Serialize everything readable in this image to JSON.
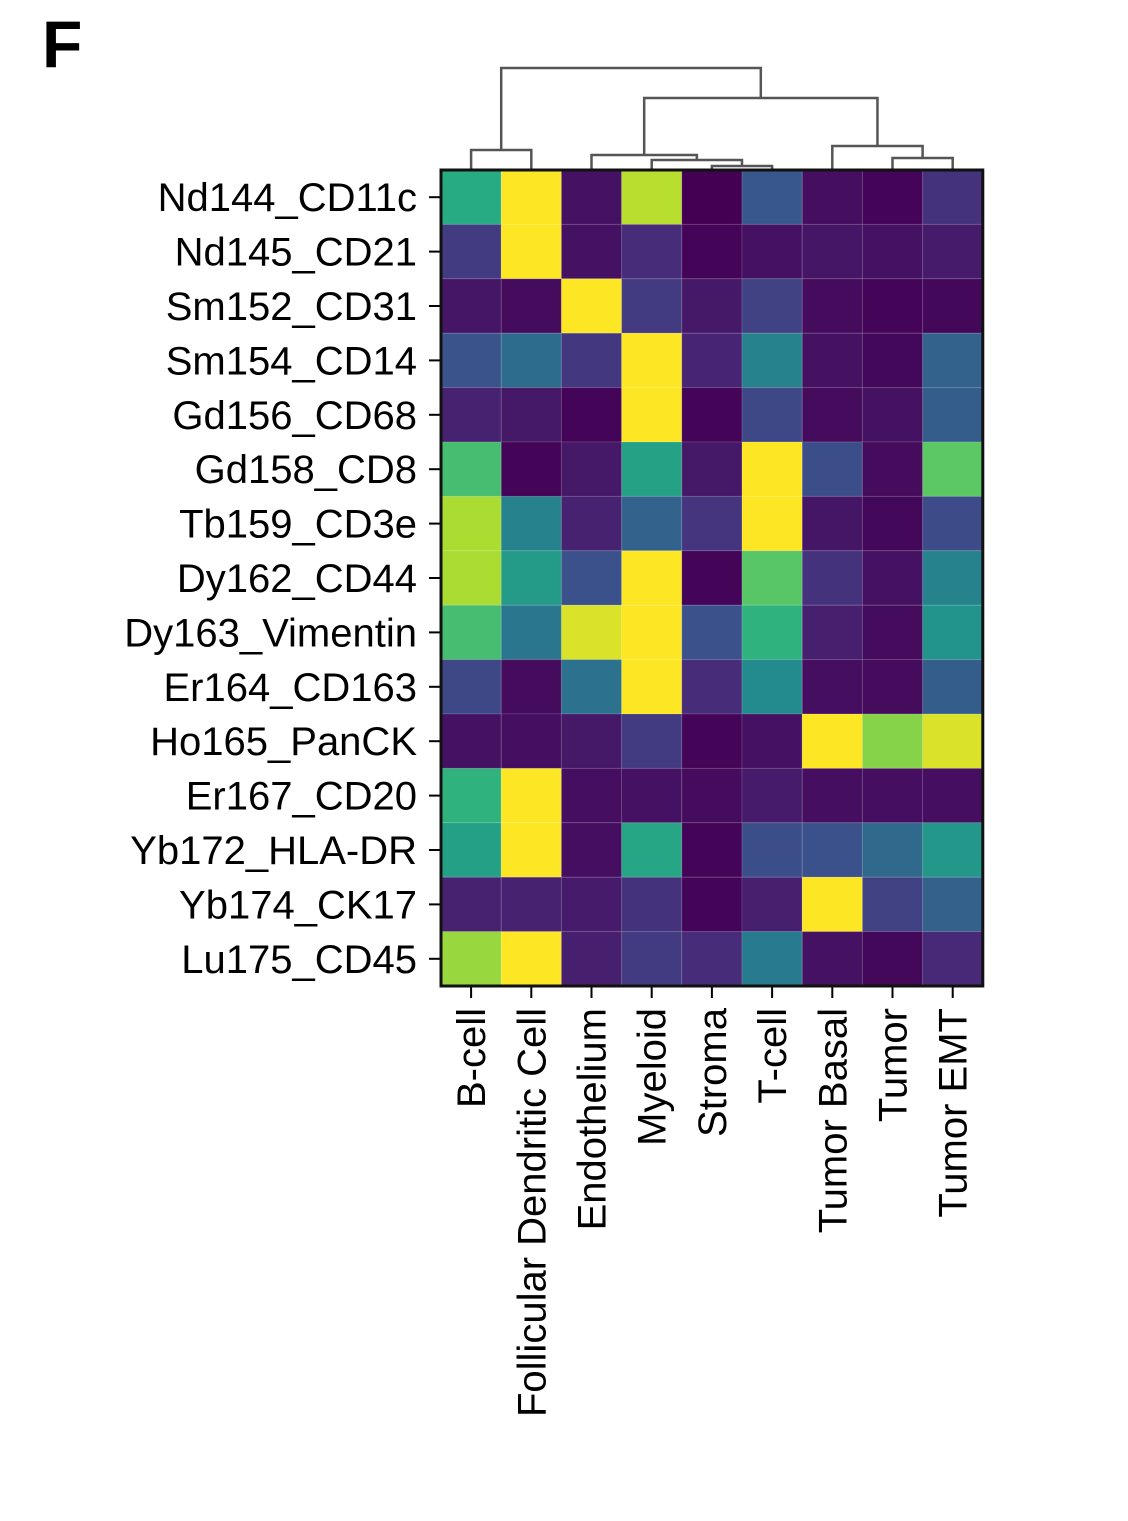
{
  "panel_label": "F",
  "chart_data": {
    "type": "heatmap",
    "title": "",
    "xlabel": "",
    "ylabel": "",
    "columns": [
      "B-cell",
      "Follicular Dendritic Cell",
      "Endothelium",
      "Myeloid",
      "Stroma",
      "T-cell",
      "Tumor Basal",
      "Tumor",
      "Tumor EMT"
    ],
    "rows": [
      "Nd144_CD11c",
      "Nd145_CD21",
      "Sm152_CD31",
      "Sm154_CD14",
      "Gd156_CD68",
      "Gd158_CD8",
      "Tb159_CD3e",
      "Dy162_CD44",
      "Dy163_Vimentin",
      "Er164_CD163",
      "Ho165_PanCK",
      "Er167_CD20",
      "Yb172_HLA-DR",
      "Yb174_CK17",
      "Lu175_CD45"
    ],
    "values": [
      [
        0.62,
        1.0,
        0.05,
        0.9,
        0.0,
        0.28,
        0.04,
        0.01,
        0.15
      ],
      [
        0.18,
        1.0,
        0.05,
        0.13,
        0.01,
        0.05,
        0.06,
        0.05,
        0.08
      ],
      [
        0.06,
        0.03,
        1.0,
        0.18,
        0.07,
        0.2,
        0.03,
        0.01,
        0.02
      ],
      [
        0.26,
        0.36,
        0.17,
        1.0,
        0.11,
        0.45,
        0.05,
        0.02,
        0.32
      ],
      [
        0.1,
        0.07,
        0.01,
        1.0,
        0.01,
        0.22,
        0.03,
        0.05,
        0.3
      ],
      [
        0.7,
        0.01,
        0.07,
        0.58,
        0.07,
        1.0,
        0.24,
        0.03,
        0.75
      ],
      [
        0.88,
        0.45,
        0.1,
        0.32,
        0.16,
        1.0,
        0.06,
        0.02,
        0.23
      ],
      [
        0.88,
        0.55,
        0.25,
        1.0,
        0.01,
        0.74,
        0.15,
        0.05,
        0.45
      ],
      [
        0.7,
        0.4,
        0.95,
        1.0,
        0.25,
        0.65,
        0.09,
        0.03,
        0.52
      ],
      [
        0.22,
        0.03,
        0.38,
        1.0,
        0.13,
        0.48,
        0.04,
        0.03,
        0.3
      ],
      [
        0.05,
        0.04,
        0.07,
        0.18,
        0.01,
        0.05,
        1.0,
        0.82,
        0.95
      ],
      [
        0.65,
        1.0,
        0.04,
        0.05,
        0.03,
        0.08,
        0.04,
        0.04,
        0.04
      ],
      [
        0.57,
        1.0,
        0.04,
        0.6,
        0.01,
        0.24,
        0.25,
        0.35,
        0.53
      ],
      [
        0.1,
        0.1,
        0.08,
        0.15,
        0.01,
        0.09,
        1.0,
        0.2,
        0.31
      ],
      [
        0.85,
        1.0,
        0.09,
        0.18,
        0.13,
        0.42,
        0.05,
        0.02,
        0.12
      ]
    ],
    "vrange": [
      0,
      1
    ],
    "colormap": "viridis",
    "dendrogram": "columns",
    "grid": true,
    "legend": "none"
  }
}
